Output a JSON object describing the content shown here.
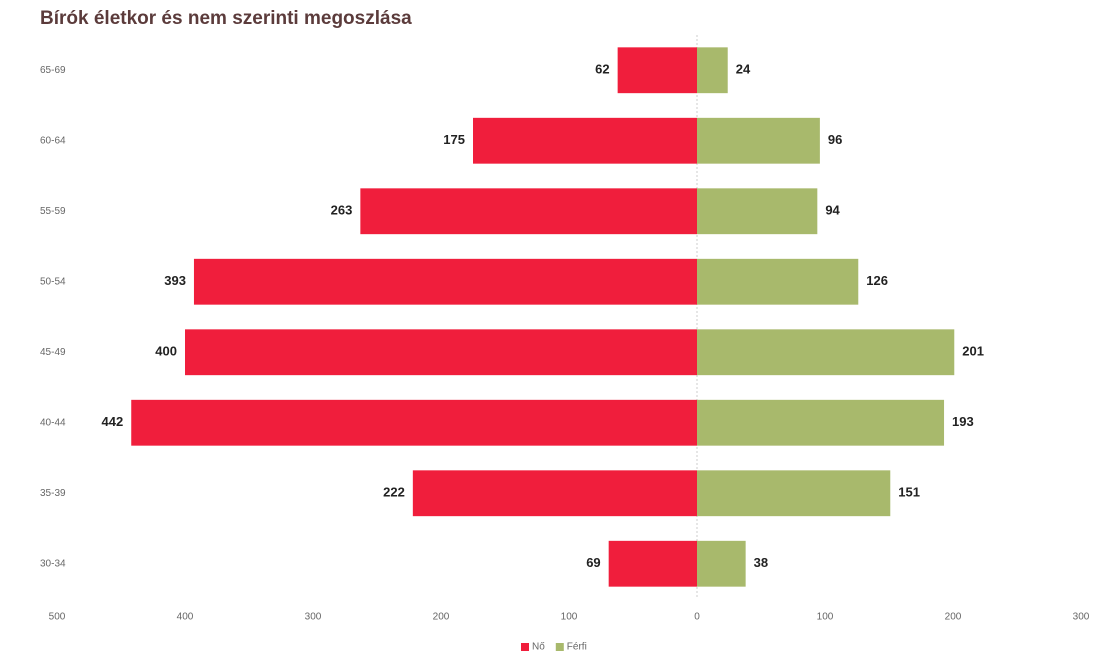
{
  "chart_data": {
    "type": "bar",
    "orientation": "horizontal",
    "stacked": "diverging",
    "title": "Bírók életkor és nem szerinti megoszlása",
    "categories": [
      "65-69",
      "60-64",
      "55-59",
      "50-54",
      "45-49",
      "40-44",
      "35-39",
      "30-34"
    ],
    "series": [
      {
        "name": "Nő",
        "color": "#f01e3c",
        "values": [
          -62,
          -175,
          -263,
          -393,
          -400,
          -442,
          -222,
          -69
        ],
        "value_labels": [
          "62",
          "175",
          "263",
          "393",
          "400",
          "442",
          "222",
          "69"
        ]
      },
      {
        "name": "Férfi",
        "color": "#a8b96c",
        "values": [
          24,
          96,
          94,
          126,
          201,
          193,
          151,
          38
        ]
      }
    ],
    "xlim": [
      -500,
      300
    ],
    "xticks": [
      {
        "value": -500,
        "label": "500"
      },
      {
        "value": -400,
        "label": "400"
      },
      {
        "value": -300,
        "label": "300"
      },
      {
        "value": -200,
        "label": "200"
      },
      {
        "value": -100,
        "label": "100"
      },
      0,
      100,
      200,
      300
    ],
    "grid": false,
    "legend": "bottom"
  }
}
